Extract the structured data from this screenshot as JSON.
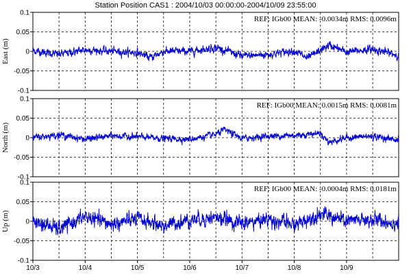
{
  "chart_data": {
    "title": "Station Position CAS1  : 2004/10/03 00:00:00-2004/10/09 23:55:00",
    "type": "line",
    "x_ticks": [
      "10/3",
      "10/4",
      "10/5",
      "10/6",
      "10/7",
      "10/8",
      "10/9"
    ],
    "xlim": [
      "2004/10/03 00:00:00",
      "2004/10/09 23:55:00"
    ],
    "grid": true,
    "panels": [
      {
        "ylabel": "East (m)",
        "ylim": [
          -0.1,
          0.1
        ],
        "y_ticks": [
          "0.1",
          "0.05",
          "0",
          "-0.05",
          "-0.1"
        ],
        "annotation": "REF: IGb00  MEAN: -0.0034m RMS: 0.0096m",
        "mean": -0.0034,
        "rms": 0.0096,
        "series_color": "#0000d0",
        "anchors": [
          [
            "2004/10/03",
            0.002
          ],
          [
            "2004/10/03 12:00",
            -0.008
          ],
          [
            "2004/10/04",
            0.004
          ],
          [
            "2004/10/04 12:00",
            0.0
          ],
          [
            "2004/10/05",
            -0.003
          ],
          [
            "2004/10/05 06:00",
            -0.016
          ],
          [
            "2004/10/05 12:00",
            0.0
          ],
          [
            "2004/10/06",
            0.0
          ],
          [
            "2004/10/06 12:00",
            0.01
          ],
          [
            "2004/10/07",
            -0.012
          ],
          [
            "2004/10/07 12:00",
            -0.008
          ],
          [
            "2004/10/08",
            0.002
          ],
          [
            "2004/10/08 06:00",
            -0.018
          ],
          [
            "2004/10/08 16:00",
            0.016
          ],
          [
            "2004/10/09",
            -0.002
          ],
          [
            "2004/10/09 12:00",
            0.006
          ],
          [
            "2004/10/09 23:55",
            -0.01
          ]
        ]
      },
      {
        "ylabel": "North (m)",
        "ylim": [
          -0.1,
          0.1
        ],
        "y_ticks": [
          "0.1",
          "0.05",
          "0",
          "-0.05",
          "-0.1"
        ],
        "annotation": "REF: IGb00  MEAN: 0.0015m RMS: 0.0081m",
        "mean": 0.0015,
        "rms": 0.0081,
        "series_color": "#0000d0",
        "anchors": [
          [
            "2004/10/03",
            0.0
          ],
          [
            "2004/10/03 12:00",
            0.008
          ],
          [
            "2004/10/04",
            -0.004
          ],
          [
            "2004/10/04 12:00",
            0.005
          ],
          [
            "2004/10/05",
            0.002
          ],
          [
            "2004/10/05 12:00",
            -0.002
          ],
          [
            "2004/10/06",
            -0.004
          ],
          [
            "2004/10/06 12:00",
            0.008
          ],
          [
            "2004/10/06 16:00",
            0.02
          ],
          [
            "2004/10/07",
            -0.002
          ],
          [
            "2004/10/07 12:00",
            0.004
          ],
          [
            "2004/10/08",
            0.006
          ],
          [
            "2004/10/08 12:00",
            0.012
          ],
          [
            "2004/10/08 16:00",
            -0.012
          ],
          [
            "2004/10/09",
            0.0
          ],
          [
            "2004/10/09 12:00",
            0.004
          ],
          [
            "2004/10/09 23:55",
            -0.006
          ]
        ]
      },
      {
        "ylabel": "Up (m)",
        "ylim": [
          -0.1,
          0.1
        ],
        "y_ticks": [
          "0.1",
          "0.05",
          "0",
          "-0.05",
          "-0.1"
        ],
        "annotation": "REF: IGb00  MEAN: -0.0004m RMS: 0.0181m",
        "mean": -0.0004,
        "rms": 0.0181,
        "series_color": "#0000d0",
        "anchors": [
          [
            "2004/10/03",
            0.0
          ],
          [
            "2004/10/03 12:00",
            -0.02
          ],
          [
            "2004/10/04",
            0.012
          ],
          [
            "2004/10/04 12:00",
            -0.008
          ],
          [
            "2004/10/05",
            0.006
          ],
          [
            "2004/10/05 12:00",
            -0.012
          ],
          [
            "2004/10/06",
            0.004
          ],
          [
            "2004/10/06 12:00",
            0.01
          ],
          [
            "2004/10/07",
            -0.006
          ],
          [
            "2004/10/07 12:00",
            0.006
          ],
          [
            "2004/10/08",
            -0.01
          ],
          [
            "2004/10/08 12:00",
            0.02
          ],
          [
            "2004/10/09",
            0.0
          ],
          [
            "2004/10/09 12:00",
            0.004
          ],
          [
            "2004/10/09 23:55",
            -0.006
          ]
        ]
      }
    ]
  }
}
